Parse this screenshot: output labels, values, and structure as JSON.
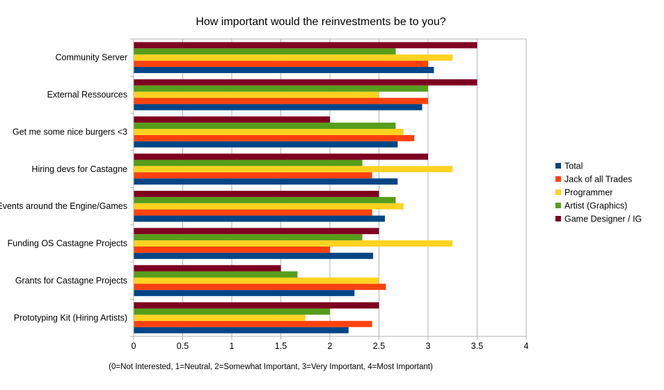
{
  "chart_data": {
    "type": "bar",
    "orientation": "horizontal",
    "title": "How important would the reinvestments be to you?",
    "xlabel": "(0=Not Interested, 1=Neutral, 2=Somewhat Important, 3=Very Important, 4=Most Important)",
    "ylabel": "",
    "xlim": [
      0,
      4
    ],
    "xticks": [
      "0",
      "0.5",
      "1",
      "1.5",
      "2",
      "2.5",
      "3",
      "3.5",
      "4"
    ],
    "grid": true,
    "legend_position": "right",
    "categories": [
      "Community Server",
      "External Ressources",
      "Get me some nice burgers <3",
      "Hiring devs for Castagne",
      "Events around the Engine/Games",
      "Funding OS Castagne Projects",
      "Grants for Castagne Projects",
      "Prototyping Kit (Hiring Artists)"
    ],
    "series": [
      {
        "name": "Total",
        "color": "#004586",
        "values": [
          3.06,
          2.94,
          2.69,
          2.69,
          2.56,
          2.44,
          2.25,
          2.19
        ]
      },
      {
        "name": "Jack of all Trades",
        "color": "#ff420e",
        "values": [
          3.0,
          3.0,
          2.86,
          2.43,
          2.43,
          2.0,
          2.57,
          2.43
        ]
      },
      {
        "name": "Programmer",
        "color": "#ffd320",
        "values": [
          3.25,
          2.5,
          2.75,
          3.25,
          2.75,
          3.25,
          2.5,
          1.75
        ]
      },
      {
        "name": "Artist (Graphics)",
        "color": "#579d1c",
        "values": [
          2.67,
          3.0,
          2.67,
          2.33,
          2.67,
          2.33,
          1.67,
          2.0
        ]
      },
      {
        "name": "Game Designer / IG",
        "color": "#7e0021",
        "values": [
          3.5,
          3.5,
          2.0,
          3.0,
          2.5,
          2.5,
          1.5,
          2.5
        ]
      }
    ]
  }
}
